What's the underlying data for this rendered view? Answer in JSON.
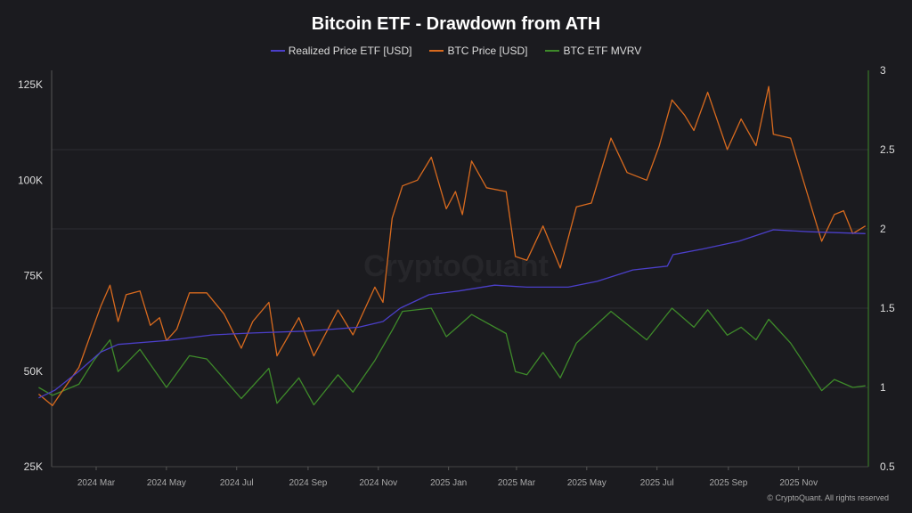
{
  "chart_data": {
    "type": "line",
    "title": "Bitcoin ETF - Drawdown from ATH",
    "watermark": "CryptoQuant",
    "copyright": "© CryptoQuant. All rights reserved",
    "legend_position": "top",
    "grid": true,
    "x_ticks": [
      "2024 Mar",
      "2024 May",
      "2024 Jul",
      "2024 Sep",
      "2024 Nov",
      "2025 Jan",
      "2025 Mar",
      "2025 May",
      "2025 Jul",
      "2025 Sep",
      "2025 Nov"
    ],
    "x_tick_dates": [
      "2024-03-01",
      "2024-05-01",
      "2024-07-01",
      "2024-09-01",
      "2024-11-01",
      "2025-01-01",
      "2025-03-01",
      "2025-05-01",
      "2025-07-01",
      "2025-09-01",
      "2025-11-01"
    ],
    "y_left": {
      "ticks": [
        "125K",
        "100K",
        "75K",
        "50K",
        "25K"
      ],
      "tick_values": [
        125000,
        100000,
        75000,
        50000,
        25000
      ],
      "range": [
        25000,
        125000
      ]
    },
    "y_right": {
      "ticks": [
        "3",
        "2.5",
        "2",
        "1.5",
        "1",
        "0.5"
      ],
      "tick_values": [
        3,
        2.5,
        2,
        1.5,
        1,
        0.5
      ],
      "range": [
        0.5,
        3
      ]
    },
    "series": [
      {
        "name": "Realized Price ETF [USD]",
        "axis": "left",
        "color": "#4b3fc9",
        "points": [
          [
            "2024-01-11",
            43000
          ],
          [
            "2024-01-25",
            45000
          ],
          [
            "2024-02-15",
            50000
          ],
          [
            "2024-03-05",
            55000
          ],
          [
            "2024-03-20",
            57000
          ],
          [
            "2024-05-01",
            58000
          ],
          [
            "2024-06-10",
            59500
          ],
          [
            "2024-07-15",
            60000
          ],
          [
            "2024-09-01",
            60500
          ],
          [
            "2024-10-15",
            61500
          ],
          [
            "2024-11-05",
            63000
          ],
          [
            "2024-11-20",
            66500
          ],
          [
            "2024-12-15",
            70000
          ],
          [
            "2025-01-10",
            71000
          ],
          [
            "2025-02-10",
            72500
          ],
          [
            "2025-03-10",
            72000
          ],
          [
            "2025-04-15",
            72000
          ],
          [
            "2025-05-10",
            73500
          ],
          [
            "2025-06-10",
            76500
          ],
          [
            "2025-07-10",
            77500
          ],
          [
            "2025-07-15",
            80500
          ],
          [
            "2025-08-10",
            82000
          ],
          [
            "2025-09-10",
            84000
          ],
          [
            "2025-10-10",
            87000
          ],
          [
            "2025-11-10",
            86500
          ],
          [
            "2025-12-29",
            86000
          ]
        ]
      },
      {
        "name": "BTC Price [USD]",
        "axis": "left",
        "color": "#d86a1e",
        "points": [
          [
            "2024-01-11",
            44000
          ],
          [
            "2024-01-23",
            41000
          ],
          [
            "2024-02-01",
            45000
          ],
          [
            "2024-02-15",
            51000
          ],
          [
            "2024-02-28",
            62000
          ],
          [
            "2024-03-05",
            67000
          ],
          [
            "2024-03-13",
            72500
          ],
          [
            "2024-03-20",
            63000
          ],
          [
            "2024-03-27",
            70000
          ],
          [
            "2024-04-08",
            71000
          ],
          [
            "2024-04-17",
            62000
          ],
          [
            "2024-04-25",
            64000
          ],
          [
            "2024-05-01",
            58000
          ],
          [
            "2024-05-10",
            61000
          ],
          [
            "2024-05-21",
            70500
          ],
          [
            "2024-06-05",
            70500
          ],
          [
            "2024-06-20",
            65000
          ],
          [
            "2024-07-05",
            56000
          ],
          [
            "2024-07-15",
            63000
          ],
          [
            "2024-07-29",
            68000
          ],
          [
            "2024-08-05",
            54000
          ],
          [
            "2024-08-24",
            64000
          ],
          [
            "2024-09-06",
            54000
          ],
          [
            "2024-09-27",
            66000
          ],
          [
            "2024-10-10",
            59500
          ],
          [
            "2024-10-29",
            72000
          ],
          [
            "2024-11-05",
            68000
          ],
          [
            "2024-11-13",
            90000
          ],
          [
            "2024-11-22",
            98500
          ],
          [
            "2024-12-05",
            100000
          ],
          [
            "2024-12-17",
            106000
          ],
          [
            "2024-12-30",
            92500
          ],
          [
            "2025-01-07",
            97000
          ],
          [
            "2025-01-13",
            91000
          ],
          [
            "2025-01-21",
            105000
          ],
          [
            "2025-02-03",
            98000
          ],
          [
            "2025-02-20",
            97000
          ],
          [
            "2025-02-28",
            80000
          ],
          [
            "2025-03-10",
            79000
          ],
          [
            "2025-03-24",
            88000
          ],
          [
            "2025-04-08",
            77000
          ],
          [
            "2025-04-22",
            93000
          ],
          [
            "2025-05-05",
            94000
          ],
          [
            "2025-05-22",
            111000
          ],
          [
            "2025-06-05",
            102000
          ],
          [
            "2025-06-22",
            100000
          ],
          [
            "2025-07-03",
            109000
          ],
          [
            "2025-07-14",
            121000
          ],
          [
            "2025-07-25",
            117000
          ],
          [
            "2025-08-02",
            113000
          ],
          [
            "2025-08-14",
            123000
          ],
          [
            "2025-08-31",
            108000
          ],
          [
            "2025-09-12",
            116000
          ],
          [
            "2025-09-25",
            109000
          ],
          [
            "2025-10-06",
            124500
          ],
          [
            "2025-10-10",
            112000
          ],
          [
            "2025-10-25",
            111000
          ],
          [
            "2025-11-04",
            101000
          ],
          [
            "2025-11-21",
            84000
          ],
          [
            "2025-12-02",
            91000
          ],
          [
            "2025-12-10",
            92000
          ],
          [
            "2025-12-18",
            86000
          ],
          [
            "2025-12-29",
            88000
          ]
        ]
      },
      {
        "name": "BTC ETF MVRV",
        "axis": "right",
        "color": "#3e8a2a",
        "points": [
          [
            "2024-01-11",
            1.0
          ],
          [
            "2024-01-23",
            0.95
          ],
          [
            "2024-02-15",
            1.02
          ],
          [
            "2024-02-28",
            1.17
          ],
          [
            "2024-03-13",
            1.3
          ],
          [
            "2024-03-20",
            1.1
          ],
          [
            "2024-04-08",
            1.24
          ],
          [
            "2024-05-01",
            1.0
          ],
          [
            "2024-05-21",
            1.2
          ],
          [
            "2024-06-05",
            1.18
          ],
          [
            "2024-07-05",
            0.93
          ],
          [
            "2024-07-29",
            1.12
          ],
          [
            "2024-08-05",
            0.9
          ],
          [
            "2024-08-24",
            1.06
          ],
          [
            "2024-09-06",
            0.89
          ],
          [
            "2024-09-27",
            1.08
          ],
          [
            "2024-10-10",
            0.97
          ],
          [
            "2024-10-29",
            1.17
          ],
          [
            "2024-11-13",
            1.36
          ],
          [
            "2024-11-22",
            1.48
          ],
          [
            "2024-12-17",
            1.5
          ],
          [
            "2024-12-30",
            1.32
          ],
          [
            "2025-01-21",
            1.46
          ],
          [
            "2025-02-20",
            1.34
          ],
          [
            "2025-02-28",
            1.1
          ],
          [
            "2025-03-10",
            1.08
          ],
          [
            "2025-03-24",
            1.22
          ],
          [
            "2025-04-08",
            1.06
          ],
          [
            "2025-04-22",
            1.28
          ],
          [
            "2025-05-22",
            1.48
          ],
          [
            "2025-06-22",
            1.3
          ],
          [
            "2025-07-14",
            1.5
          ],
          [
            "2025-08-02",
            1.38
          ],
          [
            "2025-08-14",
            1.49
          ],
          [
            "2025-08-31",
            1.33
          ],
          [
            "2025-09-12",
            1.38
          ],
          [
            "2025-09-25",
            1.3
          ],
          [
            "2025-10-06",
            1.43
          ],
          [
            "2025-10-25",
            1.28
          ],
          [
            "2025-11-04",
            1.17
          ],
          [
            "2025-11-21",
            0.98
          ],
          [
            "2025-12-02",
            1.05
          ],
          [
            "2025-12-18",
            1.0
          ],
          [
            "2025-12-29",
            1.01
          ]
        ]
      }
    ]
  }
}
